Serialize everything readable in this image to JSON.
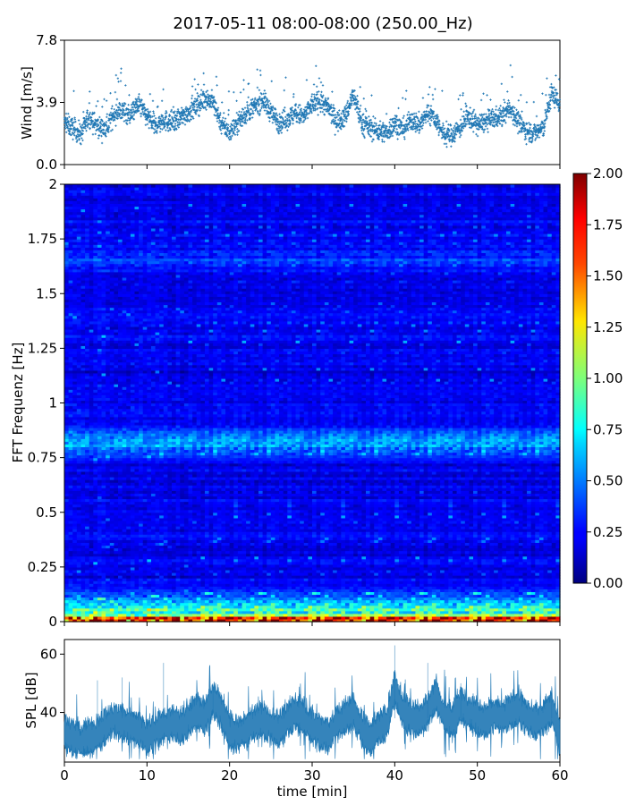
{
  "title": "2017-05-11 08:00-08:00 (250.00_Hz)",
  "chart_data": [
    {
      "type": "scatter",
      "panel": "wind",
      "ylabel": "Wind [m/s]",
      "xlabel": "",
      "xlim": [
        0,
        60
      ],
      "ylim": [
        0,
        7.8
      ],
      "yticks": [
        "0.0",
        "3.9",
        "7.8"
      ],
      "series_color": "#1f77b4",
      "samples_per_minute": 50,
      "series": [
        {
          "x": [
            0,
            1,
            2,
            3,
            4,
            5,
            6,
            7,
            8,
            9,
            10,
            11,
            12,
            13,
            14,
            15,
            16,
            17,
            18,
            19,
            20,
            21,
            22,
            23,
            24,
            25,
            26,
            27,
            28,
            29,
            30,
            31,
            32,
            33,
            34,
            35,
            36,
            37,
            38,
            39,
            40,
            41,
            42,
            43,
            44,
            45,
            46,
            47,
            48,
            49,
            50,
            51,
            52,
            53,
            54,
            55,
            56,
            57,
            58,
            59,
            60
          ],
          "y": [
            2.6,
            2.3,
            1.9,
            3.0,
            2.4,
            2.2,
            3.2,
            3.4,
            3.1,
            3.8,
            3.0,
            2.4,
            2.8,
            2.6,
            2.9,
            3.3,
            3.6,
            4.2,
            3.9,
            2.6,
            2.0,
            2.7,
            3.2,
            3.6,
            4.1,
            3.3,
            2.6,
            2.9,
            3.2,
            3.0,
            3.8,
            4.0,
            3.5,
            2.7,
            3.0,
            4.4,
            2.6,
            2.3,
            2.1,
            2.0,
            2.6,
            2.2,
            2.8,
            2.5,
            3.3,
            2.8,
            1.8,
            1.9,
            2.4,
            3.0,
            2.5,
            2.7,
            2.9,
            3.0,
            3.6,
            2.6,
            2.1,
            2.0,
            2.3,
            4.5,
            3.8
          ]
        }
      ]
    },
    {
      "type": "heatmap",
      "panel": "spectrogram",
      "xlabel": "",
      "ylabel": "FFT Frequenz [Hz]",
      "xlim": [
        0,
        60
      ],
      "ylim": [
        0,
        2
      ],
      "yticks": [
        "0",
        "0.25",
        "0.5",
        "0.75",
        "1",
        "1.25",
        "1.5",
        "1.75",
        "2"
      ],
      "colormap": "jet",
      "clim": [
        0.0,
        2.0
      ],
      "colorbar_ticks": [
        "0.00",
        "0.25",
        "0.50",
        "0.75",
        "1.00",
        "1.25",
        "1.50",
        "1.75",
        "2.00"
      ],
      "time_bins": 120,
      "freq_bins": 160,
      "features": [
        {
          "freq_hz": 0.01,
          "mean_level": 1.6
        },
        {
          "freq_hz": 0.05,
          "mean_level": 0.75
        },
        {
          "freq_hz": 0.1,
          "mean_level": 0.45
        },
        {
          "freq_hz": 0.82,
          "mean_level": 0.55
        },
        {
          "freq_hz": 1.65,
          "mean_level": 0.35
        }
      ],
      "background_level": 0.22
    },
    {
      "type": "area",
      "panel": "spl",
      "xlabel": "time [min]",
      "ylabel": "SPL [dB]",
      "xlim": [
        0,
        60
      ],
      "ylim": [
        23,
        65
      ],
      "xticks": [
        "0",
        "10",
        "20",
        "30",
        "40",
        "50",
        "60"
      ],
      "yticks": [
        "40",
        "60"
      ],
      "series_color": "#1f77b4",
      "series": [
        {
          "x": [
            0,
            1,
            2,
            3,
            4,
            5,
            6,
            7,
            8,
            9,
            10,
            11,
            12,
            13,
            14,
            15,
            16,
            17,
            18,
            19,
            20,
            21,
            22,
            23,
            24,
            25,
            26,
            27,
            28,
            29,
            30,
            31,
            32,
            33,
            34,
            35,
            36,
            37,
            38,
            39,
            40,
            41,
            42,
            43,
            44,
            45,
            46,
            47,
            48,
            49,
            50,
            51,
            52,
            53,
            54,
            55,
            56,
            57,
            58,
            59,
            60
          ],
          "y": [
            33,
            31,
            30,
            31,
            32,
            35,
            37,
            36,
            35,
            34,
            31,
            33,
            35,
            36,
            35,
            37,
            40,
            38,
            44,
            40,
            33,
            32,
            34,
            36,
            37,
            35,
            34,
            37,
            40,
            38,
            35,
            33,
            32,
            36,
            38,
            40,
            34,
            31,
            34,
            36,
            48,
            40,
            38,
            37,
            40,
            46,
            38,
            37,
            42,
            40,
            38,
            37,
            39,
            38,
            40,
            41,
            38,
            36,
            38,
            41,
            31
          ]
        }
      ]
    }
  ]
}
